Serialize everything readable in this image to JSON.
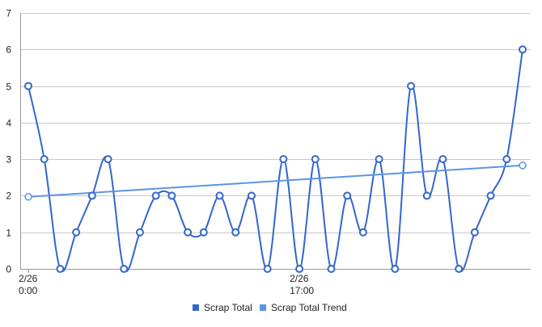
{
  "chart_data": {
    "type": "line",
    "title": "",
    "xlabel": "",
    "ylabel": "",
    "ylim": [
      0,
      7
    ],
    "y_ticks": [
      0,
      1,
      2,
      3,
      4,
      5,
      6,
      7
    ],
    "grid": true,
    "legend_position": "bottom",
    "x_tick_labels": [
      {
        "index": 0,
        "lines": [
          "2/26",
          "0:00"
        ]
      },
      {
        "index": 17,
        "lines": [
          "2/26",
          "17:00"
        ]
      }
    ],
    "series": [
      {
        "name": "Scrap Total",
        "color": "#3366cc",
        "smooth": true,
        "values": [
          5,
          3,
          0,
          1,
          2,
          3,
          0,
          1,
          2,
          2,
          1,
          1,
          2,
          1,
          2,
          0,
          3,
          0,
          3,
          0,
          2,
          1,
          3,
          0,
          5,
          2,
          3,
          0,
          1,
          2,
          3,
          6
        ]
      },
      {
        "name": "Scrap Total Trend",
        "color": "#5b95e3",
        "smooth": false,
        "trend": true,
        "start": 1.97,
        "end": 2.83
      }
    ]
  }
}
